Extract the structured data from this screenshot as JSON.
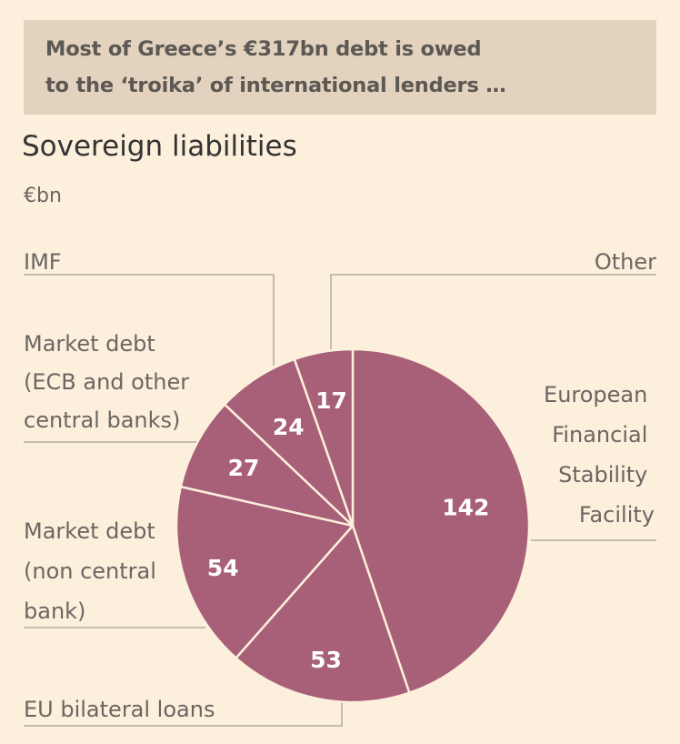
{
  "banner": {
    "line1": "Most of Greece’s €317bn debt is owed",
    "line2": "to the ‘troika’ of international lenders …"
  },
  "chart_data": {
    "type": "pie",
    "title": "Sovereign liabilities",
    "unit": "€bn",
    "total": 317,
    "slices": [
      {
        "label": "European Financial Stability Facility",
        "label_lines": [
          "European",
          "Financial",
          "Stability",
          "Facility"
        ],
        "value": 142
      },
      {
        "label": "EU bilateral loans",
        "label_lines": [
          "EU bilateral loans"
        ],
        "value": 53
      },
      {
        "label": "Market debt (non central bank)",
        "label_lines": [
          "Market debt",
          "(non central",
          "bank)"
        ],
        "value": 54
      },
      {
        "label": "Market debt (ECB and other central banks)",
        "label_lines": [
          "Market debt",
          "(ECB and other",
          "central banks)"
        ],
        "value": 27
      },
      {
        "label": "IMF",
        "label_lines": [
          "IMF"
        ],
        "value": 24
      },
      {
        "label": "Other",
        "label_lines": [
          "Other"
        ],
        "value": 17
      }
    ]
  },
  "colors": {
    "slice": "#a85f78",
    "background": "#fcefdc",
    "banner": "#e3d2bd"
  }
}
